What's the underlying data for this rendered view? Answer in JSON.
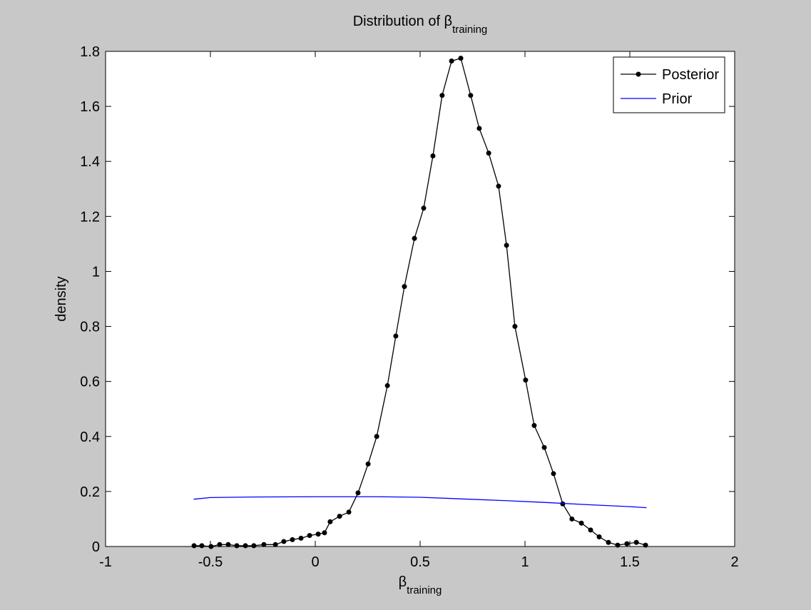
{
  "chart_data": {
    "type": "line",
    "title": "Distribution of β",
    "title_subscript": "training",
    "x_label": "β",
    "x_label_subscript": "training",
    "y_label": "density",
    "xlim": [
      -1,
      2
    ],
    "xticks": [
      -1,
      -0.5,
      0,
      0.5,
      1,
      1.5,
      2
    ],
    "ylim": [
      0,
      1.8
    ],
    "yticks": [
      0,
      0.2,
      0.4,
      0.6,
      0.8,
      1,
      1.2,
      1.4,
      1.6,
      1.8
    ],
    "legend": "upper right",
    "series": [
      {
        "name": "Posterior",
        "color": "#000000",
        "marker": true,
        "x": [
          -0.578,
          -0.541,
          -0.497,
          -0.456,
          -0.415,
          -0.374,
          -0.333,
          -0.293,
          -0.245,
          -0.19,
          -0.15,
          -0.109,
          -0.068,
          -0.027,
          0.014,
          0.044,
          0.071,
          0.116,
          0.16,
          0.204,
          0.252,
          0.293,
          0.344,
          0.384,
          0.425,
          0.473,
          0.517,
          0.561,
          0.605,
          0.65,
          0.694,
          0.741,
          0.782,
          0.827,
          0.874,
          0.912,
          0.952,
          1.003,
          1.044,
          1.092,
          1.136,
          1.18,
          1.224,
          1.269,
          1.313,
          1.354,
          1.398,
          1.442,
          1.486,
          1.531,
          1.575
        ],
        "values": [
          0.003,
          0.003,
          0.0,
          0.007,
          0.007,
          0.003,
          0.003,
          0.003,
          0.007,
          0.007,
          0.018,
          0.025,
          0.03,
          0.04,
          0.045,
          0.05,
          0.09,
          0.11,
          0.125,
          0.195,
          0.3,
          0.4,
          0.585,
          0.765,
          0.945,
          1.12,
          1.23,
          1.42,
          1.64,
          1.765,
          1.775,
          1.64,
          1.52,
          1.43,
          1.31,
          1.095,
          0.8,
          0.605,
          0.44,
          0.36,
          0.265,
          0.155,
          0.1,
          0.085,
          0.06,
          0.035,
          0.015,
          0.005,
          0.01,
          0.015,
          0.005
        ]
      },
      {
        "name": "Prior",
        "color": "#0000ff",
        "marker": false,
        "x": [
          -0.58,
          -0.5,
          -0.3,
          0,
          0.3,
          0.5,
          0.7,
          0.9,
          1.1,
          1.3,
          1.5,
          1.58
        ],
        "values": [
          0.172,
          0.178,
          0.18,
          0.181,
          0.181,
          0.179,
          0.173,
          0.167,
          0.16,
          0.152,
          0.145,
          0.141
        ]
      }
    ]
  }
}
